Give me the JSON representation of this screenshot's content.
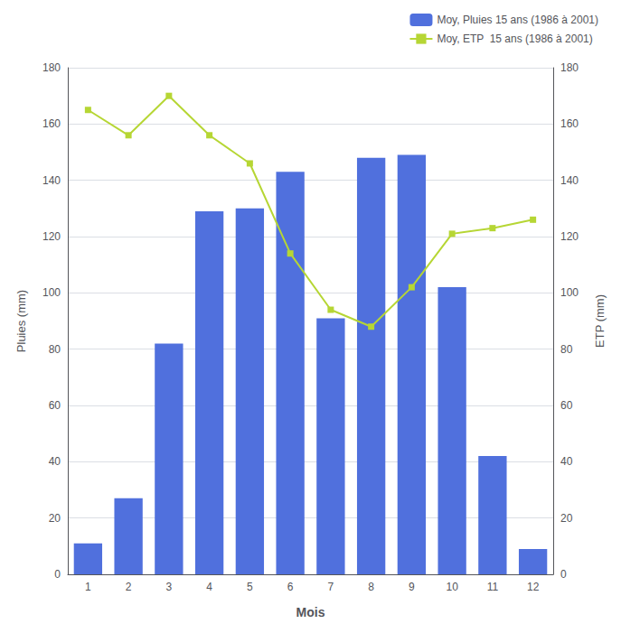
{
  "chart_data": {
    "type": "bar",
    "categories": [
      "1",
      "2",
      "3",
      "4",
      "5",
      "6",
      "7",
      "8",
      "9",
      "10",
      "11",
      "12"
    ],
    "xlabel": "Mois",
    "ylabel": "Pluies (mm)",
    "y2label": "ETP (mm)",
    "series": [
      {
        "name": "Moy, Pluies 15 ans (1986 à 2001)",
        "type": "bar",
        "values": [
          11,
          27,
          82,
          129,
          130,
          143,
          91,
          148,
          149,
          102,
          42,
          9
        ]
      },
      {
        "name": "Moy, ETP  15 ans (1986 à 2001)",
        "type": "line",
        "marker": "square",
        "axis": "y2",
        "values": [
          165,
          156,
          170,
          156,
          146,
          114,
          94,
          88,
          102,
          121,
          123,
          126
        ]
      }
    ],
    "ylim": [
      0,
      180
    ],
    "yticks": [
      0,
      20,
      40,
      60,
      80,
      100,
      120,
      140,
      160,
      180
    ],
    "y2lim": [
      0,
      180
    ],
    "y2ticks": [
      0,
      20,
      40,
      60,
      80,
      100,
      120,
      140,
      160,
      180
    ],
    "grid": true,
    "legend": "upper right"
  }
}
